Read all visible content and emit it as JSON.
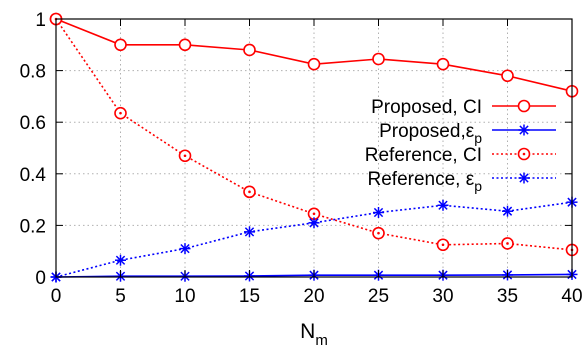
{
  "chart_data": {
    "type": "line",
    "title": "",
    "xlabel": "N",
    "xlabel_sub": "m",
    "ylabel": "",
    "x": [
      0,
      5,
      10,
      15,
      20,
      25,
      30,
      35,
      40
    ],
    "xlim": [
      0,
      40
    ],
    "ylim": [
      0,
      1
    ],
    "xticks": [
      "0",
      "5",
      "10",
      "15",
      "20",
      "25",
      "30",
      "35",
      "40"
    ],
    "yticks": [
      "0",
      "0.2",
      "0.4",
      "0.6",
      "0.8",
      "1"
    ],
    "grid": true,
    "legend_position": "right",
    "series": [
      {
        "name": "Proposed, CI",
        "label_main": "Proposed, CI",
        "label_sub": "",
        "values": [
          1.0,
          0.9,
          0.9,
          0.88,
          0.825,
          0.845,
          0.825,
          0.78,
          0.72
        ],
        "color": "#ff0000",
        "line_style": "solid",
        "marker": "circle"
      },
      {
        "name": "Proposed,εp",
        "label_main": "Proposed,ε",
        "label_sub": "p",
        "values": [
          0.0,
          0.003,
          0.003,
          0.004,
          0.007,
          0.007,
          0.007,
          0.008,
          0.01
        ],
        "color": "#0000ff",
        "line_style": "solid",
        "marker": "star"
      },
      {
        "name": "Reference, CI",
        "label_main": "Reference, CI",
        "label_sub": "",
        "values": [
          1.0,
          0.635,
          0.47,
          0.33,
          0.245,
          0.17,
          0.125,
          0.13,
          0.105
        ],
        "color": "#ff0000",
        "line_style": "dotted",
        "marker": "dotted-circle"
      },
      {
        "name": "Reference, εp",
        "label_main": "Reference, ε",
        "label_sub": "p",
        "values": [
          0.0,
          0.065,
          0.11,
          0.175,
          0.21,
          0.25,
          0.278,
          0.255,
          0.29
        ],
        "color": "#0000ff",
        "line_style": "dotted",
        "marker": "star"
      }
    ]
  }
}
